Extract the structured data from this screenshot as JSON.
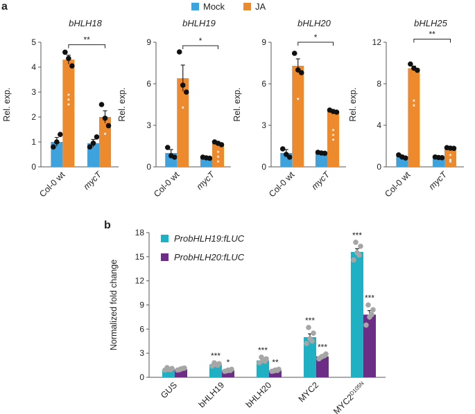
{
  "panel_a_label": "a",
  "panel_b_label": "b",
  "colors": {
    "mock": "#3ea3dd",
    "ja": "#ee8a2e",
    "bhlh19_reporter": "#1fb0c4",
    "bhlh20_reporter": "#6b2d86",
    "dot": "#111111",
    "dot_b": "#a6a6a6",
    "error": "#222222"
  },
  "chart_data": [
    {
      "type": "bar",
      "panel": "a",
      "title": "bHLH18",
      "ylabel": "Rel. exp.",
      "ylim": [
        0,
        5
      ],
      "yticks": [
        0,
        1,
        2,
        3,
        4,
        5
      ],
      "ytick_labels": [
        "0",
        "1",
        "2",
        "3",
        "4",
        "5"
      ],
      "categories": [
        "Col-0 wt",
        "mycT"
      ],
      "category_italic": [
        false,
        true
      ],
      "series": [
        {
          "name": "Mock",
          "values": [
            1.0,
            0.95
          ],
          "errors": [
            0.18,
            0.15
          ],
          "points": [
            [
              0.8,
              1.0,
              1.3
            ],
            [
              0.8,
              0.95,
              1.2
            ]
          ],
          "stars": [
            "",
            ""
          ]
        },
        {
          "name": "JA",
          "values": [
            4.3,
            2.0
          ],
          "errors": [
            0.18,
            0.25
          ],
          "points": [
            [
              4.6,
              4.35,
              4.05
            ],
            [
              2.5,
              1.95,
              1.65
            ]
          ],
          "stars": [
            "***",
            "*"
          ]
        }
      ],
      "comparison": {
        "label": "**",
        "y": 4.9
      }
    },
    {
      "type": "bar",
      "panel": "a",
      "title": "bHLH19",
      "ylabel": "Rel. exp.",
      "ylim": [
        0,
        9
      ],
      "yticks": [
        0,
        3,
        6,
        9
      ],
      "ytick_labels": [
        "0",
        "3",
        "6",
        "9"
      ],
      "categories": [
        "Col-0 wt",
        "mycT"
      ],
      "category_italic": [
        false,
        true
      ],
      "series": [
        {
          "name": "Mock",
          "values": [
            1.0,
            0.65
          ],
          "errors": [
            0.25,
            0.06
          ],
          "points": [
            [
              1.4,
              0.8,
              0.7
            ],
            [
              0.7,
              0.65,
              0.62
            ]
          ],
          "stars": [
            "",
            ""
          ]
        },
        {
          "name": "JA",
          "values": [
            6.4,
            1.7
          ],
          "errors": [
            0.95,
            0.12
          ],
          "points": [
            [
              8.3,
              5.9,
              5.4
            ],
            [
              1.8,
              1.7,
              1.6
            ]
          ],
          "stars": [
            "*",
            "***"
          ]
        }
      ],
      "comparison": {
        "label": "*",
        "y": 8.75
      }
    },
    {
      "type": "bar",
      "panel": "a",
      "title": "bHLH20",
      "ylabel": "Rel. exp.",
      "ylim": [
        0,
        9
      ],
      "yticks": [
        0,
        3,
        6,
        9
      ],
      "ytick_labels": [
        "0",
        "3",
        "6",
        "9"
      ],
      "categories": [
        "Col-0 wt",
        "mycT"
      ],
      "category_italic": [
        false,
        true
      ],
      "series": [
        {
          "name": "Mock",
          "values": [
            1.0,
            1.0
          ],
          "errors": [
            0.25,
            0.05
          ],
          "points": [
            [
              1.3,
              0.9,
              0.7
            ],
            [
              1.05,
              1.0,
              0.98
            ]
          ],
          "stars": [
            "",
            ""
          ]
        },
        {
          "name": "JA",
          "values": [
            7.3,
            4.0
          ],
          "errors": [
            0.5,
            0.08
          ],
          "points": [
            [
              8.2,
              7.0,
              6.8
            ],
            [
              4.1,
              4.0,
              3.95
            ]
          ],
          "stars": [
            "*",
            "***"
          ]
        }
      ],
      "comparison": {
        "label": "*",
        "y": 9.0
      }
    },
    {
      "type": "bar",
      "panel": "a",
      "title": "bHLH25",
      "ylabel": "Rel. exp.",
      "ylim": [
        0,
        12
      ],
      "yticks": [
        0,
        4,
        8,
        12
      ],
      "ytick_labels": [
        "0",
        "4",
        "8",
        "12"
      ],
      "categories": [
        "Col-0 wt",
        "mycT"
      ],
      "category_italic": [
        false,
        true
      ],
      "series": [
        {
          "name": "Mock",
          "values": [
            1.0,
            0.9
          ],
          "errors": [
            0.12,
            0.05
          ],
          "points": [
            [
              1.15,
              0.95,
              0.85
            ],
            [
              0.95,
              0.9,
              0.88
            ]
          ],
          "stars": [
            "",
            ""
          ]
        },
        {
          "name": "JA",
          "values": [
            9.5,
            1.8
          ],
          "errors": [
            0.2,
            0.06
          ],
          "points": [
            [
              9.9,
              9.5,
              9.3
            ],
            [
              1.85,
              1.8,
              1.78
            ]
          ],
          "stars": [
            "**",
            "***"
          ]
        }
      ],
      "comparison": {
        "label": "**",
        "y": 12.3
      }
    },
    {
      "type": "bar",
      "panel": "b",
      "title": "",
      "ylabel": "Normalized fold change",
      "ylim": [
        0,
        18
      ],
      "yticks": [
        0,
        3,
        6,
        9,
        12,
        15,
        18
      ],
      "ytick_labels": [
        "0",
        "3",
        "6",
        "9",
        "12",
        "15",
        "18"
      ],
      "categories": [
        "GUS",
        "bHLH19",
        "bHLH20",
        "MYC2",
        "MYC2"
      ],
      "category_superscripts": [
        "",
        "",
        "",
        "",
        "D105N"
      ],
      "series": [
        {
          "name": "ProbHLH19:fLUC",
          "values": [
            1.0,
            1.6,
            2.1,
            5.0,
            15.6
          ],
          "errors": [
            0.1,
            0.1,
            0.2,
            0.4,
            0.4
          ],
          "points": [
            [
              0.9,
              1.0,
              1.1,
              1.2,
              0.95
            ],
            [
              1.4,
              1.6,
              1.7,
              1.8,
              1.5
            ],
            [
              1.8,
              2.1,
              2.3,
              2.5,
              2.0
            ],
            [
              4.2,
              4.8,
              5.5,
              6.2,
              4.5
            ],
            [
              14.6,
              15.5,
              16.3,
              16.8,
              15.2
            ]
          ],
          "stars": [
            "",
            "***",
            "***",
            "***",
            "***"
          ]
        },
        {
          "name": "ProbHLH20:fLUC",
          "values": [
            1.0,
            0.85,
            0.85,
            2.6,
            7.8
          ],
          "errors": [
            0.08,
            0.07,
            0.07,
            0.2,
            0.5
          ],
          "points": [
            [
              0.9,
              1.05,
              1.15,
              0.95,
              1.1
            ],
            [
              0.75,
              0.9,
              1.0,
              0.8,
              0.85
            ],
            [
              0.75,
              0.9,
              1.0,
              0.8,
              0.85
            ],
            [
              2.3,
              2.6,
              2.9,
              2.5,
              2.7
            ],
            [
              6.5,
              7.5,
              8.4,
              9.0,
              7.8
            ]
          ],
          "stars": [
            "",
            "*",
            "**",
            "***",
            "***"
          ]
        }
      ]
    }
  ],
  "legend_a": [
    {
      "label": "Mock",
      "color_key": "mock"
    },
    {
      "label": "JA",
      "color_key": "ja"
    }
  ],
  "legend_b": [
    {
      "label": "ProbHLH19:fLUC",
      "color_key": "bhlh19_reporter"
    },
    {
      "label": "ProbHLH20:fLUC",
      "color_key": "bhlh20_reporter"
    }
  ]
}
